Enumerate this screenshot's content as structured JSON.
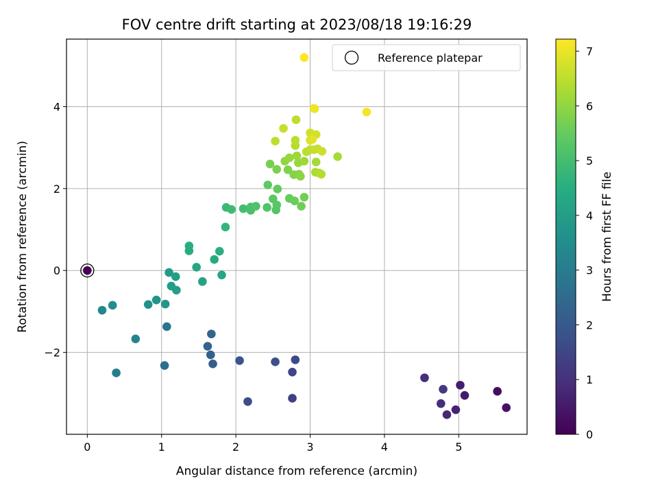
{
  "chart_data": {
    "type": "scatter",
    "title": "FOV centre drift starting at 2023/08/18 19:16:29",
    "xlabel": "Angular distance from reference (arcmin)",
    "ylabel": "Rotation from reference (arcmin)",
    "xlim": [
      -0.28,
      5.92
    ],
    "ylim": [
      -4.0,
      5.65
    ],
    "xticks": [
      0,
      1,
      2,
      3,
      4,
      5
    ],
    "xtick_labels": [
      "0",
      "1",
      "2",
      "3",
      "4",
      "5"
    ],
    "yticks": [
      -2,
      0,
      2,
      4
    ],
    "ytick_labels": [
      "−2",
      "0",
      "2",
      "4"
    ],
    "grid": true,
    "legend": {
      "location": "top-right",
      "entries": [
        "Reference platepar"
      ]
    },
    "colorbar": {
      "label": "Hours from first FF file",
      "min": 0,
      "max": 7.22,
      "ticks": [
        0,
        1,
        2,
        3,
        4,
        5,
        6,
        7
      ],
      "colormap": "viridis"
    },
    "reference_point": {
      "x": 0,
      "y": 0,
      "c": 0
    },
    "points": [
      {
        "x": 0.0,
        "y": 0.0,
        "c": 0.0
      },
      {
        "x": 5.52,
        "y": -2.95,
        "c": 0.2
      },
      {
        "x": 5.64,
        "y": -3.35,
        "c": 0.35
      },
      {
        "x": 5.08,
        "y": -3.05,
        "c": 0.5
      },
      {
        "x": 5.02,
        "y": -2.8,
        "c": 0.6
      },
      {
        "x": 4.96,
        "y": -3.4,
        "c": 0.7
      },
      {
        "x": 4.84,
        "y": -3.52,
        "c": 0.8
      },
      {
        "x": 4.76,
        "y": -3.25,
        "c": 0.9
      },
      {
        "x": 4.54,
        "y": -2.62,
        "c": 0.95
      },
      {
        "x": 4.79,
        "y": -2.9,
        "c": 1.2
      },
      {
        "x": 2.76,
        "y": -3.12,
        "c": 1.4
      },
      {
        "x": 2.16,
        "y": -3.2,
        "c": 1.7
      },
      {
        "x": 2.76,
        "y": -2.48,
        "c": 1.5
      },
      {
        "x": 2.8,
        "y": -2.18,
        "c": 1.6
      },
      {
        "x": 2.53,
        "y": -2.23,
        "c": 1.75
      },
      {
        "x": 2.05,
        "y": -2.2,
        "c": 1.9
      },
      {
        "x": 1.69,
        "y": -2.28,
        "c": 2.1
      },
      {
        "x": 1.66,
        "y": -2.06,
        "c": 2.2
      },
      {
        "x": 1.62,
        "y": -1.85,
        "c": 2.3
      },
      {
        "x": 1.67,
        "y": -1.55,
        "c": 2.4
      },
      {
        "x": 1.04,
        "y": -2.32,
        "c": 2.6
      },
      {
        "x": 1.07,
        "y": -1.37,
        "c": 2.8
      },
      {
        "x": 0.39,
        "y": -2.5,
        "c": 3.0
      },
      {
        "x": 0.65,
        "y": -1.67,
        "c": 3.2
      },
      {
        "x": 0.2,
        "y": -0.97,
        "c": 3.35
      },
      {
        "x": 0.34,
        "y": -0.85,
        "c": 3.5
      },
      {
        "x": 0.82,
        "y": -0.83,
        "c": 3.65
      },
      {
        "x": 0.93,
        "y": -0.72,
        "c": 3.75
      },
      {
        "x": 1.05,
        "y": -0.82,
        "c": 3.8
      },
      {
        "x": 1.1,
        "y": -0.05,
        "c": 3.9
      },
      {
        "x": 1.13,
        "y": -0.38,
        "c": 3.95
      },
      {
        "x": 1.2,
        "y": -0.48,
        "c": 4.0
      },
      {
        "x": 1.19,
        "y": -0.15,
        "c": 4.05
      },
      {
        "x": 1.55,
        "y": -0.27,
        "c": 4.15
      },
      {
        "x": 1.47,
        "y": 0.08,
        "c": 4.25
      },
      {
        "x": 1.81,
        "y": -0.11,
        "c": 4.3
      },
      {
        "x": 1.71,
        "y": 0.27,
        "c": 4.4
      },
      {
        "x": 1.37,
        "y": 0.48,
        "c": 4.45
      },
      {
        "x": 1.37,
        "y": 0.6,
        "c": 4.5
      },
      {
        "x": 1.78,
        "y": 0.47,
        "c": 4.55
      },
      {
        "x": 1.86,
        "y": 1.06,
        "c": 4.7
      },
      {
        "x": 1.87,
        "y": 1.54,
        "c": 4.85
      },
      {
        "x": 1.94,
        "y": 1.49,
        "c": 4.9
      },
      {
        "x": 2.1,
        "y": 1.51,
        "c": 5.0
      },
      {
        "x": 2.2,
        "y": 1.47,
        "c": 5.05
      },
      {
        "x": 2.2,
        "y": 1.55,
        "c": 5.1
      },
      {
        "x": 2.27,
        "y": 1.57,
        "c": 5.15
      },
      {
        "x": 2.42,
        "y": 1.54,
        "c": 5.2
      },
      {
        "x": 2.54,
        "y": 1.48,
        "c": 5.25
      },
      {
        "x": 2.55,
        "y": 1.6,
        "c": 5.3
      },
      {
        "x": 2.5,
        "y": 1.75,
        "c": 5.35
      },
      {
        "x": 2.43,
        "y": 2.09,
        "c": 5.4
      },
      {
        "x": 2.56,
        "y": 1.99,
        "c": 5.45
      },
      {
        "x": 2.72,
        "y": 1.76,
        "c": 5.5
      },
      {
        "x": 2.79,
        "y": 1.7,
        "c": 5.55
      },
      {
        "x": 2.88,
        "y": 1.57,
        "c": 5.6
      },
      {
        "x": 2.92,
        "y": 1.79,
        "c": 5.65
      },
      {
        "x": 2.46,
        "y": 2.6,
        "c": 5.7
      },
      {
        "x": 2.55,
        "y": 2.47,
        "c": 5.75
      },
      {
        "x": 2.7,
        "y": 2.46,
        "c": 5.8
      },
      {
        "x": 2.78,
        "y": 2.34,
        "c": 5.85
      },
      {
        "x": 2.85,
        "y": 2.35,
        "c": 5.9
      },
      {
        "x": 2.87,
        "y": 2.3,
        "c": 5.95
      },
      {
        "x": 2.66,
        "y": 2.67,
        "c": 6.0
      },
      {
        "x": 2.72,
        "y": 2.75,
        "c": 6.05
      },
      {
        "x": 2.84,
        "y": 2.63,
        "c": 6.1
      },
      {
        "x": 2.82,
        "y": 2.8,
        "c": 6.12
      },
      {
        "x": 2.92,
        "y": 2.67,
        "c": 6.15
      },
      {
        "x": 3.08,
        "y": 2.65,
        "c": 6.2
      },
      {
        "x": 3.37,
        "y": 2.78,
        "c": 6.25
      },
      {
        "x": 3.07,
        "y": 2.4,
        "c": 6.3
      },
      {
        "x": 3.12,
        "y": 2.38,
        "c": 6.35
      },
      {
        "x": 3.15,
        "y": 2.35,
        "c": 6.4
      },
      {
        "x": 2.95,
        "y": 2.9,
        "c": 6.45
      },
      {
        "x": 3.0,
        "y": 2.95,
        "c": 6.5
      },
      {
        "x": 3.05,
        "y": 2.95,
        "c": 6.55
      },
      {
        "x": 3.1,
        "y": 2.97,
        "c": 6.6
      },
      {
        "x": 3.16,
        "y": 2.91,
        "c": 6.65
      },
      {
        "x": 2.8,
        "y": 3.05,
        "c": 6.4
      },
      {
        "x": 2.8,
        "y": 3.18,
        "c": 6.45
      },
      {
        "x": 2.53,
        "y": 3.16,
        "c": 6.5
      },
      {
        "x": 2.64,
        "y": 3.47,
        "c": 6.6
      },
      {
        "x": 2.81,
        "y": 3.68,
        "c": 6.5
      },
      {
        "x": 3.0,
        "y": 3.36,
        "c": 6.7
      },
      {
        "x": 3.08,
        "y": 3.32,
        "c": 6.75
      },
      {
        "x": 3.0,
        "y": 3.18,
        "c": 6.8
      },
      {
        "x": 3.03,
        "y": 3.2,
        "c": 6.9
      },
      {
        "x": 3.05,
        "y": 3.96,
        "c": 7.0
      },
      {
        "x": 3.06,
        "y": 3.95,
        "c": 7.05
      },
      {
        "x": 3.76,
        "y": 3.87,
        "c": 7.1
      },
      {
        "x": 2.92,
        "y": 5.2,
        "c": 7.2
      }
    ]
  }
}
